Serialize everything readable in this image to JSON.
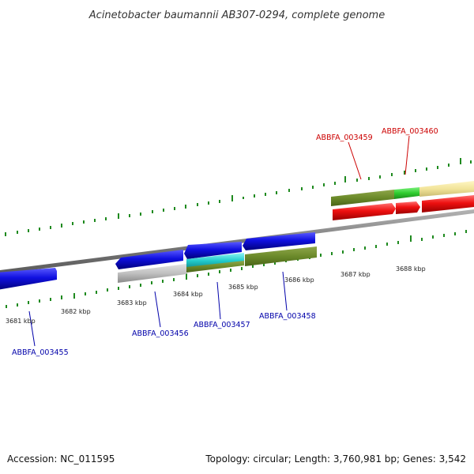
{
  "title": "Acinetobacter baumannii AB307-0294, complete genome",
  "footer": {
    "accession": "Accession: NC_011595",
    "summary": "Topology: circular; Length: 3,760,981 bp; Genes: 3,542"
  },
  "colors": {
    "background": "#ffffff",
    "backbone": "#8a8a8a",
    "tick": "#1f8a1f",
    "forward_label": "#cc0000",
    "reverse_label": "#0000aa"
  },
  "ticks": [
    {
      "label": "3681 kbp"
    },
    {
      "label": "3682 kbp"
    },
    {
      "label": "3683 kbp"
    },
    {
      "label": "3684 kbp"
    },
    {
      "label": "3685 kbp"
    },
    {
      "label": "3686 kbp"
    },
    {
      "label": "3687 kbp"
    },
    {
      "label": "3688 kbp"
    }
  ],
  "genes": [
    {
      "label": "ABBFA_003455",
      "strand": "reverse"
    },
    {
      "label": "ABBFA_003456",
      "strand": "reverse"
    },
    {
      "label": "ABBFA_003457",
      "strand": "reverse"
    },
    {
      "label": "ABBFA_003458",
      "strand": "reverse"
    },
    {
      "label": "ABBFA_003459",
      "strand": "forward"
    },
    {
      "label": "ABBFA_003460",
      "strand": "forward"
    }
  ]
}
